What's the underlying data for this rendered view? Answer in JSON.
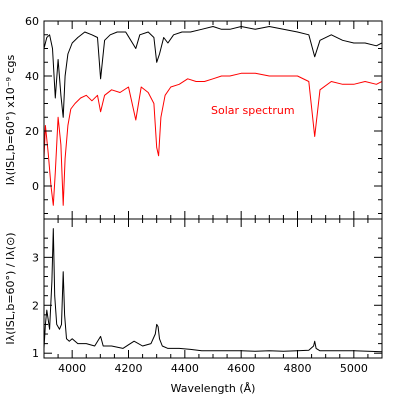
{
  "chart_data": [
    {
      "type": "line",
      "panel": "top",
      "ylabel": "Iλ(ISL,b=60°) x10⁻⁹ cgs",
      "xlim": [
        3900,
        5100
      ],
      "ylim": [
        -12,
        60
      ],
      "y_ticks": [
        "60",
        "40",
        "20",
        "0"
      ],
      "annotation": "Solar spectrum",
      "grid": false,
      "colors": {
        "isl": "#000000",
        "solar": "#ff0000"
      },
      "series": [
        {
          "name": "",
          "color": "#000000",
          "x": [
            3900,
            3910,
            3920,
            3930,
            3940,
            3950,
            3960,
            3968,
            3975,
            3985,
            4000,
            4020,
            4045,
            4070,
            4090,
            4101,
            4115,
            4135,
            4160,
            4190,
            4226,
            4240,
            4270,
            4290,
            4300,
            4310,
            4325,
            4340,
            4360,
            4390,
            4420,
            4460,
            4500,
            4530,
            4560,
            4600,
            4650,
            4700,
            4750,
            4800,
            4840,
            4861,
            4880,
            4920,
            4960,
            5000,
            5040,
            5080,
            5100
          ],
          "y": [
            50,
            54,
            55,
            50,
            32,
            46,
            33,
            25,
            40,
            48,
            52,
            54,
            56,
            55,
            54,
            39,
            53,
            55,
            56,
            56,
            50,
            55,
            56,
            54,
            45,
            48,
            54,
            52,
            55,
            56,
            56,
            57,
            58,
            57,
            57,
            58,
            57,
            58,
            57,
            56,
            55,
            47,
            53,
            55,
            53,
            52,
            52,
            51,
            52
          ]
        },
        {
          "name": "Solar spectrum",
          "color": "#ff0000",
          "x": [
            3900,
            3905,
            3915,
            3925,
            3933,
            3940,
            3950,
            3960,
            3968,
            3975,
            3985,
            3995,
            4010,
            4030,
            4050,
            4070,
            4090,
            4101,
            4115,
            4140,
            4170,
            4200,
            4226,
            4245,
            4270,
            4290,
            4300,
            4307,
            4315,
            4330,
            4350,
            4380,
            4410,
            4440,
            4470,
            4500,
            4530,
            4560,
            4600,
            4650,
            4700,
            4750,
            4800,
            4840,
            4861,
            4880,
            4920,
            4960,
            5000,
            5040,
            5080,
            5100
          ],
          "y": [
            10,
            22,
            12,
            0,
            -7,
            5,
            25,
            15,
            -7,
            10,
            22,
            28,
            30,
            32,
            33,
            31,
            33,
            27,
            33,
            35,
            34,
            36,
            24,
            36,
            34,
            30,
            14,
            11,
            25,
            33,
            36,
            37,
            39,
            38,
            38,
            39,
            40,
            40,
            41,
            41,
            40,
            40,
            40,
            38,
            18,
            35,
            38,
            37,
            37,
            38,
            37,
            38
          ]
        }
      ]
    },
    {
      "type": "line",
      "panel": "bottom",
      "xlabel": "Wavelength (Å)",
      "ylabel": "Iλ(ISL,b=60°) / Iλ(⊙)",
      "xlim": [
        3900,
        5100
      ],
      "ylim": [
        0.9,
        3.8
      ],
      "x_ticks": [
        "4000",
        "4200",
        "4400",
        "4600",
        "4800",
        "5000"
      ],
      "y_ticks": [
        "1",
        "2",
        "3"
      ],
      "grid": false,
      "series": [
        {
          "name": "",
          "color": "#000000",
          "x": [
            3900,
            3905,
            3910,
            3920,
            3928,
            3933,
            3938,
            3945,
            3955,
            3962,
            3968,
            3973,
            3980,
            3990,
            4000,
            4020,
            4050,
            4080,
            4101,
            4110,
            4140,
            4180,
            4220,
            4250,
            4280,
            4295,
            4300,
            4305,
            4310,
            4320,
            4340,
            4380,
            4420,
            4460,
            4500,
            4550,
            4600,
            4650,
            4700,
            4750,
            4800,
            4840,
            4857,
            4861,
            4866,
            4880,
            4920,
            4960,
            5000,
            5050,
            5100
          ],
          "y": [
            1.1,
            1.6,
            1.9,
            1.5,
            2.5,
            3.6,
            2.2,
            1.6,
            1.5,
            1.6,
            2.7,
            1.8,
            1.3,
            1.25,
            1.3,
            1.2,
            1.2,
            1.15,
            1.35,
            1.15,
            1.15,
            1.1,
            1.25,
            1.15,
            1.2,
            1.4,
            1.6,
            1.55,
            1.3,
            1.15,
            1.1,
            1.1,
            1.08,
            1.05,
            1.05,
            1.05,
            1.05,
            1.04,
            1.05,
            1.04,
            1.05,
            1.06,
            1.15,
            1.25,
            1.1,
            1.05,
            1.05,
            1.05,
            1.05,
            1.04,
            1.03
          ]
        }
      ]
    }
  ]
}
